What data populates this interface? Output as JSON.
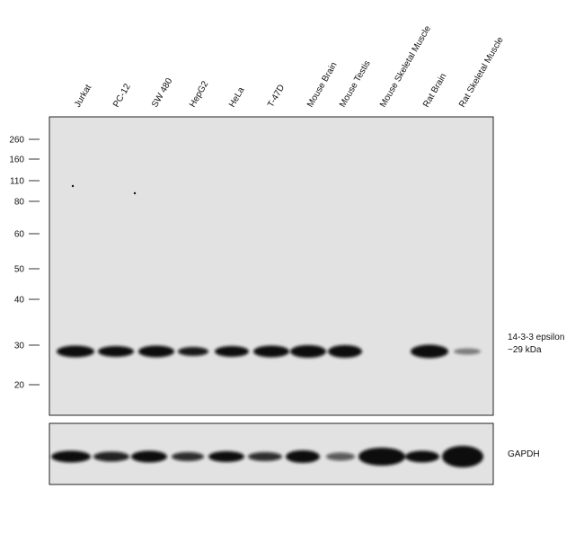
{
  "lanes": [
    "Jurkat",
    "PC-12",
    "SW 480",
    "HepG2",
    "HeLa",
    "T-47D",
    "Mouse Brain",
    "Mouse Testis",
    "Mouse Skeletal Muscle",
    "Rat Brain",
    "Rat Skeletal Muscle"
  ],
  "markers": [
    "260",
    "160",
    "110",
    "80",
    "60",
    "50",
    "40",
    "30",
    "20"
  ],
  "target_label": {
    "name": "14-3-3 epsilon",
    "size": "~29 kDa"
  },
  "loading_control": "GAPDH"
}
